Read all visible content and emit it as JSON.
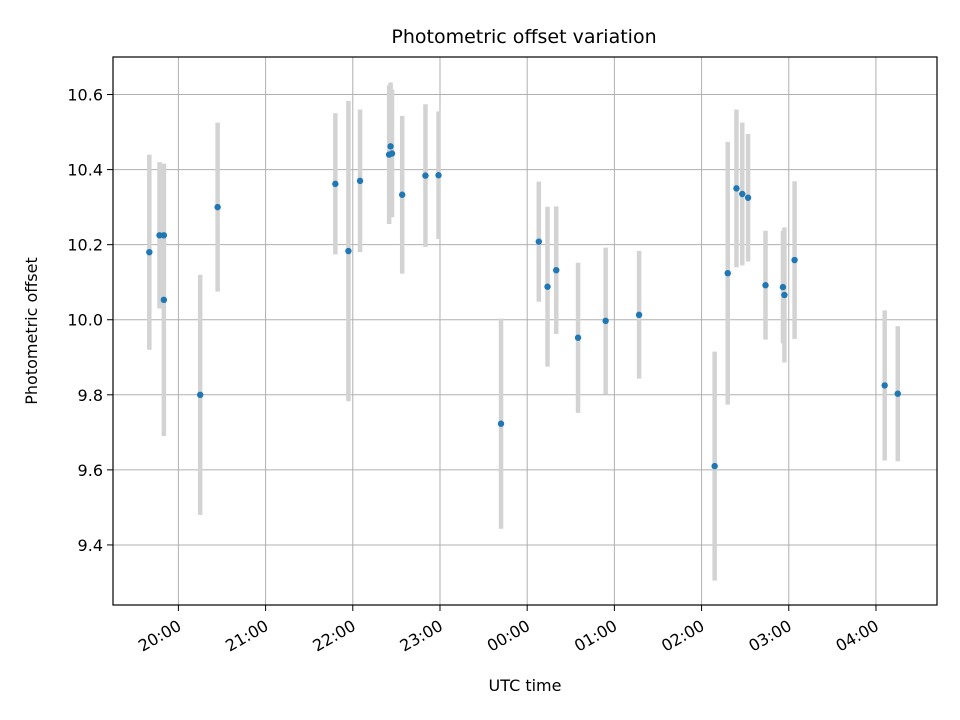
{
  "chart_data": {
    "type": "scatter",
    "title": "Photometric offset variation",
    "xlabel": "UTC time",
    "ylabel": "Photometric offset",
    "grid": true,
    "x_ticks": [
      "20:00",
      "21:00",
      "22:00",
      "23:00",
      "00:00",
      "01:00",
      "02:00",
      "03:00",
      "04:00"
    ],
    "y_ticks": [
      9.4,
      9.6,
      9.8,
      10.0,
      10.2,
      10.4,
      10.6
    ],
    "xlim": [
      "19:15",
      "04:42"
    ],
    "ylim": [
      9.24,
      10.7
    ],
    "colors": {
      "point": "#1f77b4",
      "errorbar": "#d3d3d3",
      "grid": "#b0b0b0"
    },
    "points": [
      {
        "t": "19:40",
        "y": 10.18,
        "err": 0.26
      },
      {
        "t": "19:47",
        "y": 10.225,
        "err": 0.195
      },
      {
        "t": "19:50",
        "y": 10.225,
        "err": 0.185
      },
      {
        "t": "19:50",
        "y": 10.053,
        "err": 0.363
      },
      {
        "t": "20:15",
        "y": 9.8,
        "err": 0.32
      },
      {
        "t": "20:27",
        "y": 10.3,
        "err": 0.225
      },
      {
        "t": "21:48",
        "y": 10.362,
        "err": 0.188
      },
      {
        "t": "21:57",
        "y": 10.183,
        "err": 0.4
      },
      {
        "t": "22:05",
        "y": 10.37,
        "err": 0.19
      },
      {
        "t": "22:25",
        "y": 10.44,
        "err": 0.185
      },
      {
        "t": "22:26",
        "y": 10.462,
        "err": 0.17
      },
      {
        "t": "22:27",
        "y": 10.443,
        "err": 0.17
      },
      {
        "t": "22:34",
        "y": 10.333,
        "err": 0.21
      },
      {
        "t": "22:50",
        "y": 10.384,
        "err": 0.19
      },
      {
        "t": "22:59",
        "y": 10.385,
        "err": 0.17
      },
      {
        "t": "23:42",
        "y": 9.723,
        "err": 0.28
      },
      {
        "t": "00:08",
        "y": 10.208,
        "err": 0.16
      },
      {
        "t": "00:14",
        "y": 10.088,
        "err": 0.213
      },
      {
        "t": "00:20",
        "y": 10.132,
        "err": 0.17
      },
      {
        "t": "00:35",
        "y": 9.952,
        "err": 0.2
      },
      {
        "t": "00:54",
        "y": 9.997,
        "err": 0.195
      },
      {
        "t": "01:17",
        "y": 10.013,
        "err": 0.17
      },
      {
        "t": "02:09",
        "y": 9.61,
        "err": 0.305
      },
      {
        "t": "02:18",
        "y": 10.124,
        "err": 0.35
      },
      {
        "t": "02:24",
        "y": 10.35,
        "err": 0.21
      },
      {
        "t": "02:28",
        "y": 10.335,
        "err": 0.19
      },
      {
        "t": "02:32",
        "y": 10.325,
        "err": 0.17
      },
      {
        "t": "02:44",
        "y": 10.092,
        "err": 0.145
      },
      {
        "t": "02:56",
        "y": 10.087,
        "err": 0.15
      },
      {
        "t": "02:57",
        "y": 10.066,
        "err": 0.18
      },
      {
        "t": "03:04",
        "y": 10.159,
        "err": 0.21
      },
      {
        "t": "04:06",
        "y": 9.825,
        "err": 0.2
      },
      {
        "t": "04:15",
        "y": 9.803,
        "err": 0.18
      }
    ]
  }
}
